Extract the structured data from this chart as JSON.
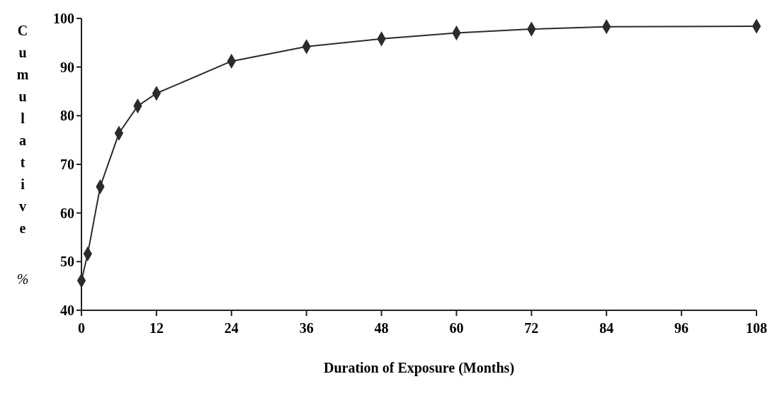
{
  "chart_data": {
    "type": "line",
    "xlabel": "Duration of Exposure (Months)",
    "ylabel": "Cumulative %",
    "x": [
      0,
      1,
      3,
      6,
      9,
      12,
      24,
      36,
      48,
      60,
      72,
      84,
      108
    ],
    "series": [
      {
        "color": "#2b2b2b",
        "values": [
          46.1,
          51.6,
          65.4,
          76.4,
          82.0,
          84.6,
          91.2,
          94.2,
          95.8,
          97.0,
          97.8,
          98.3,
          98.4
        ]
      }
    ],
    "xlim": [
      0,
      108
    ],
    "ylim": [
      40,
      100
    ],
    "xticks": [
      0,
      12,
      24,
      36,
      48,
      60,
      72,
      84,
      96,
      108
    ],
    "yticks": [
      40,
      50,
      60,
      70,
      80,
      90,
      100
    ],
    "grid": false,
    "marker": "diamond",
    "line_style": "solid"
  }
}
